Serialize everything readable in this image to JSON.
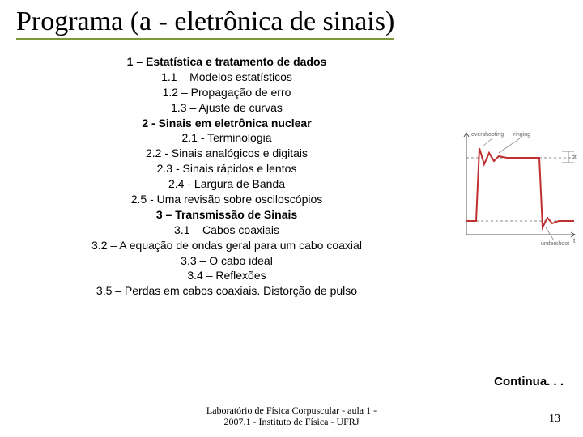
{
  "title": {
    "bold_part": "Programa",
    "rest_part": " (a - eletrônica de sinais)"
  },
  "outline": [
    {
      "text": "1 – Estatística e tratamento de dados",
      "bold": true
    },
    {
      "text": "1.1 – Modelos estatísticos",
      "bold": false
    },
    {
      "text": "1.2 – Propagação de erro",
      "bold": false
    },
    {
      "text": "1.3 – Ajuste de curvas",
      "bold": false
    },
    {
      "text": "2 - Sinais em eletrônica nuclear",
      "bold": true
    },
    {
      "text": "2.1 - Terminologia",
      "bold": false
    },
    {
      "text": "2.2 - Sinais analógicos e digitais",
      "bold": false
    },
    {
      "text": "2.3 - Sinais rápidos e lentos",
      "bold": false
    },
    {
      "text": "2.4 - Largura de Banda",
      "bold": false
    },
    {
      "text": "2.5 - Uma revisão sobre osciloscópios",
      "bold": false
    },
    {
      "text": "3 – Transmissão de Sinais",
      "bold": true
    },
    {
      "text": "3.1 – Cabos coaxiais",
      "bold": false
    },
    {
      "text": "3.2 – A equação de ondas geral para um cabo coaxial",
      "bold": false
    },
    {
      "text": "3.3 – O cabo ideal",
      "bold": false
    },
    {
      "text": "3.4 – Reflexões",
      "bold": false
    },
    {
      "text": "3.5 – Perdas em cabos coaxiais. Distorção de pulso",
      "bold": false
    }
  ],
  "diagram": {
    "labels": {
      "overshoot": "overshooting",
      "ringing": "ringing",
      "undershoot": "undershoot",
      "dt": "dt",
      "t_axis": "t"
    },
    "colors": {
      "waveform": "#c13030",
      "axes": "#555555",
      "ref_line": "#888888",
      "label": "#666666"
    }
  },
  "continua": "Continua. . .",
  "footer": {
    "line1": "Laboratório de Física Corpuscular  - aula 1 -",
    "line2": "2007.1 -  Instituto de Física - UFRJ"
  },
  "page_number": "13"
}
